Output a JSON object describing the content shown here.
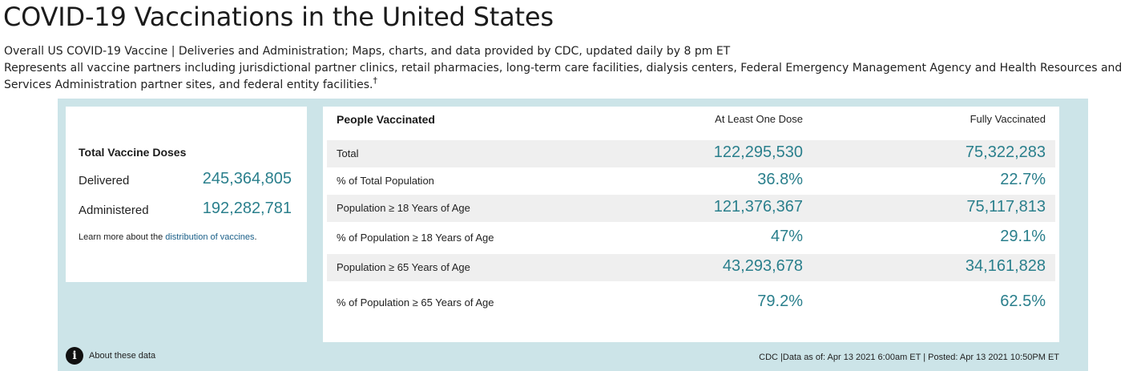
{
  "page": {
    "title": "COVID-19 Vaccinations in the United States",
    "description_line1": "Overall US COVID-19 Vaccine | Deliveries and Administration; Maps, charts, and data provided by CDC, updated daily by 8 pm ET",
    "description_line2": "Represents all vaccine partners including jurisdictional partner clinics, retail pharmacies, long-term care facilities, dialysis centers, Federal Emergency Management Agency and Health Resources and Services Administration partner sites, and federal entity facilities.",
    "dagger": "†"
  },
  "doses": {
    "heading": "Total Vaccine Doses",
    "delivered_label": "Delivered",
    "delivered_value": "245,364,805",
    "administered_label": "Administered",
    "administered_value": "192,282,781",
    "learn_prefix": "Learn more about the ",
    "learn_link": "distribution of vaccines",
    "learn_suffix": "."
  },
  "people": {
    "header": {
      "label": "People Vaccinated",
      "col1": "At Least One Dose",
      "col2": "Fully Vaccinated"
    },
    "rows": [
      {
        "label": "Total",
        "one_dose": "122,295,530",
        "fully": "75,322,283"
      },
      {
        "label": "% of Total Population",
        "one_dose": "36.8%",
        "fully": "22.7%"
      },
      {
        "label": "Population ≥ 18 Years of Age",
        "one_dose": "121,376,367",
        "fully": "75,117,813"
      },
      {
        "label": "% of Population ≥ 18 Years of Age",
        "one_dose": "47%",
        "fully": "29.1%"
      },
      {
        "label": "Population ≥ 65 Years of Age",
        "one_dose": "43,293,678",
        "fully": "34,161,828"
      },
      {
        "label": "% of Population ≥ 65 Years of Age",
        "one_dose": "79.2%",
        "fully": "62.5%"
      }
    ]
  },
  "footer": {
    "about_label": "About these data",
    "info_glyph": "i",
    "note": "CDC |Data as of: Apr 13 2021 6:00am ET | Posted: Apr 13 2021 10:50PM ET"
  },
  "colors": {
    "panel_bg": "#cce4e8",
    "value_teal": "#2a7f8c",
    "link_blue": "#1a5f88",
    "row_shade": "#efefef"
  }
}
